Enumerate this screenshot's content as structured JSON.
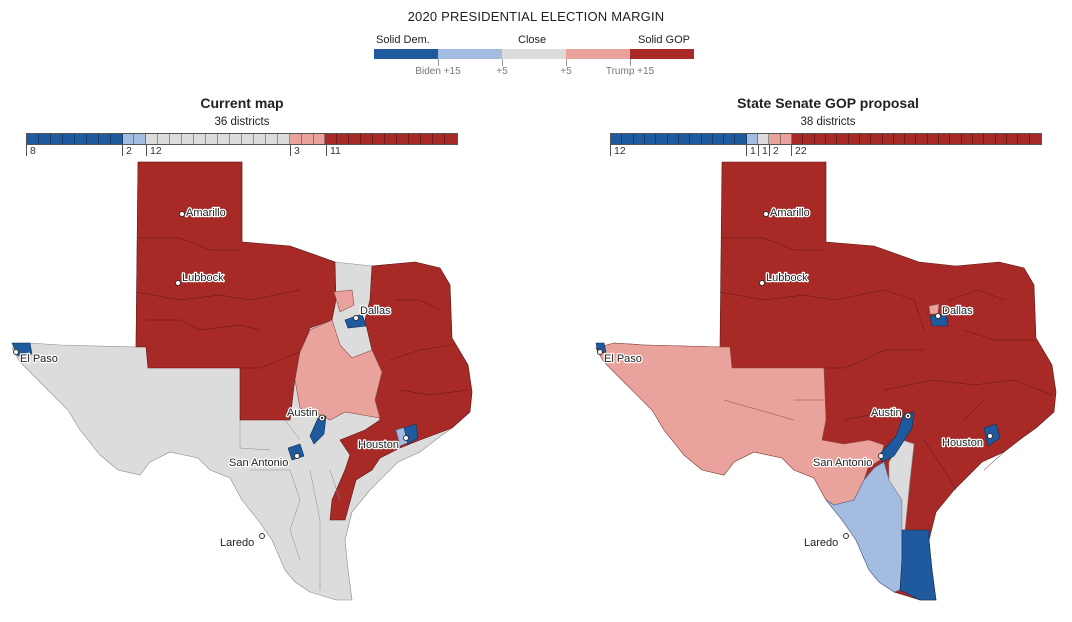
{
  "legend": {
    "title": "2020 PRESIDENTIAL ELECTION MARGIN",
    "categories": {
      "left": "Solid Dem.",
      "center": "Close",
      "right": "Solid GOP"
    },
    "ticks": [
      "Biden +15",
      "+5",
      "+5",
      "Trump +15"
    ],
    "colors": {
      "solid_dem": "#1f5a9e",
      "lean_dem": "#a4bce0",
      "close": "#dcdcdc",
      "lean_gop": "#e9a39c",
      "solid_gop": "#a82a27"
    }
  },
  "panels": [
    {
      "title": "Current map",
      "subtitle": "36 districts",
      "seat_counts": [
        "8",
        "2",
        "12",
        "3",
        "11"
      ],
      "cities": [
        "Amarillo",
        "Lubbock",
        "Dallas",
        "El Paso",
        "Austin",
        "Houston",
        "San Antonio",
        "Laredo"
      ]
    },
    {
      "title": "State Senate GOP proposal",
      "subtitle": "38 districts",
      "seat_counts": [
        "12",
        "1",
        "1",
        "2",
        "22"
      ],
      "cities": [
        "Amarillo",
        "Lubbock",
        "Dallas",
        "El Paso",
        "Austin",
        "Houston",
        "San Antonio",
        "Laredo"
      ]
    }
  ]
}
